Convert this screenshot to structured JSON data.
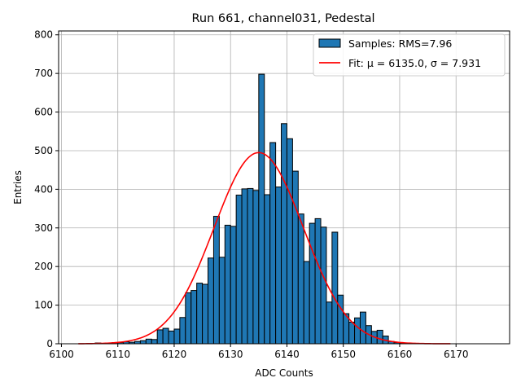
{
  "chart_data": {
    "type": "bar",
    "title": "Run 661, channel031, Pedestal",
    "xlabel": "ADC Counts",
    "ylabel": "Entries",
    "xlim": [
      6099.5,
      6179.5
    ],
    "ylim": [
      0,
      810
    ],
    "xticks": [
      6100,
      6110,
      6120,
      6130,
      6140,
      6150,
      6160,
      6170
    ],
    "yticks": [
      0,
      100,
      200,
      300,
      400,
      500,
      600,
      700,
      800
    ],
    "grid": true,
    "bin_width": 1,
    "bins_start": 6105,
    "series": [
      {
        "name": "Samples: RMS=7.96",
        "kind": "histogram",
        "color": "#1f77b4",
        "values": [
          1,
          2,
          1,
          1,
          3,
          3,
          5,
          4,
          6,
          8,
          12,
          11,
          36,
          40,
          33,
          38,
          68,
          132,
          138,
          157,
          154,
          222,
          330,
          224,
          307,
          304,
          385,
          401,
          402,
          397,
          698,
          386,
          521,
          406,
          570,
          531,
          447,
          336,
          213,
          312,
          324,
          302,
          108,
          289,
          126,
          78,
          56,
          67,
          82,
          47,
          32,
          35,
          20,
          6,
          3,
          2,
          1,
          1,
          1,
          1
        ]
      },
      {
        "name": "Fit: μ = 6135.0, σ = 7.931",
        "kind": "gaussian_fit",
        "color": "#ff0000",
        "mu": 6135.0,
        "sigma": 7.931,
        "amplitude": 495,
        "x_range": [
          6103,
          6169
        ]
      }
    ],
    "legend": {
      "placement": "top-right",
      "entries": [
        "Samples: RMS=7.96",
        "Fit: μ = 6135.0, σ = 7.931"
      ]
    }
  }
}
